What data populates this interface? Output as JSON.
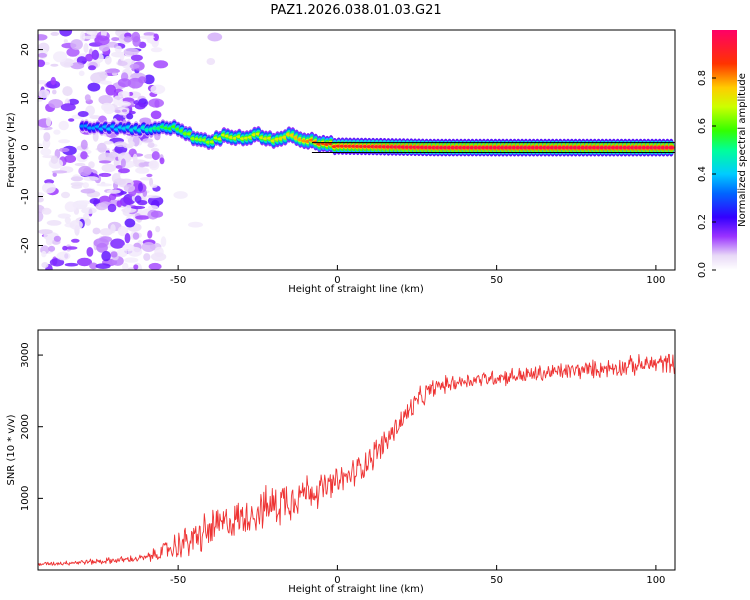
{
  "title": "PAZ1.2026.038.01.03.G21",
  "chart_data": [
    {
      "type": "heatmap",
      "name": "spectrogram",
      "xlabel": "Height of straight line (km)",
      "ylabel": "Frequency (Hz)",
      "xlim": [
        -94,
        106
      ],
      "ylim": [
        -25,
        24
      ],
      "xticks": [
        -50,
        0,
        50,
        100
      ],
      "yticks": [
        -20,
        -10,
        0,
        10,
        20
      ],
      "colorbar": {
        "label": "Normalized spectral amplitude",
        "range": [
          0,
          1
        ],
        "ticks": [
          0.0,
          0.2,
          0.4,
          0.6,
          0.8
        ],
        "tick_labels": [
          "0.0",
          "0.2",
          "0.4",
          "0.6",
          "0.8"
        ]
      },
      "ridge": {
        "description": "dominant frequency track",
        "x": [
          -80,
          -70,
          -62,
          -55,
          -50,
          -45,
          -40,
          -35,
          -30,
          -25,
          -20,
          -15,
          -10,
          -5,
          0,
          10,
          20,
          30,
          40,
          50,
          60,
          70,
          80,
          90,
          100,
          106
        ],
        "frequency": [
          4.2,
          4.0,
          3.8,
          4.0,
          4.0,
          2.0,
          1.2,
          2.5,
          2.0,
          2.5,
          1.5,
          2.5,
          1.5,
          0.8,
          0.3,
          0.2,
          0.1,
          0.0,
          0.0,
          0.0,
          0.0,
          0.0,
          0.0,
          0.0,
          0.0,
          0.0
        ],
        "amplitude": [
          0.35,
          0.4,
          0.45,
          0.55,
          0.6,
          0.65,
          0.65,
          0.7,
          0.7,
          0.7,
          0.72,
          0.75,
          0.8,
          0.85,
          0.9,
          0.92,
          0.95,
          0.95,
          0.95,
          0.96,
          0.96,
          0.96,
          0.96,
          0.96,
          0.96,
          0.96
        ]
      },
      "reference_lines_hz": [
        1.0,
        -1.0
      ]
    },
    {
      "type": "line",
      "name": "snr",
      "xlabel": "Height of straight line (km)",
      "ylabel": "SNR (10 * v/v)",
      "xlim": [
        -94,
        106
      ],
      "ylim": [
        0,
        3350
      ],
      "xticks": [
        -50,
        0,
        50,
        100
      ],
      "yticks": [
        1000,
        2000,
        3000
      ],
      "series": [
        {
          "name": "SNR",
          "color": "#ee3333",
          "x": [
            -94,
            -85,
            -75,
            -65,
            -60,
            -55,
            -50,
            -45,
            -40,
            -35,
            -30,
            -25,
            -20,
            -15,
            -10,
            -5,
            0,
            5,
            10,
            15,
            20,
            25,
            30,
            35,
            40,
            50,
            60,
            70,
            80,
            90,
            100,
            106
          ],
          "y": [
            80,
            100,
            120,
            150,
            170,
            250,
            350,
            430,
            560,
            660,
            730,
            820,
            900,
            1010,
            1100,
            1120,
            1220,
            1350,
            1550,
            1780,
            2080,
            2350,
            2540,
            2600,
            2640,
            2690,
            2720,
            2770,
            2800,
            2840,
            2880,
            2900
          ],
          "noise_amplitude": [
            30,
            40,
            50,
            60,
            70,
            150,
            250,
            300,
            350,
            300,
            300,
            320,
            380,
            400,
            300,
            280,
            250,
            250,
            250,
            230,
            220,
            200,
            150,
            140,
            130,
            140,
            150,
            150,
            150,
            160,
            170,
            170
          ]
        }
      ]
    }
  ]
}
